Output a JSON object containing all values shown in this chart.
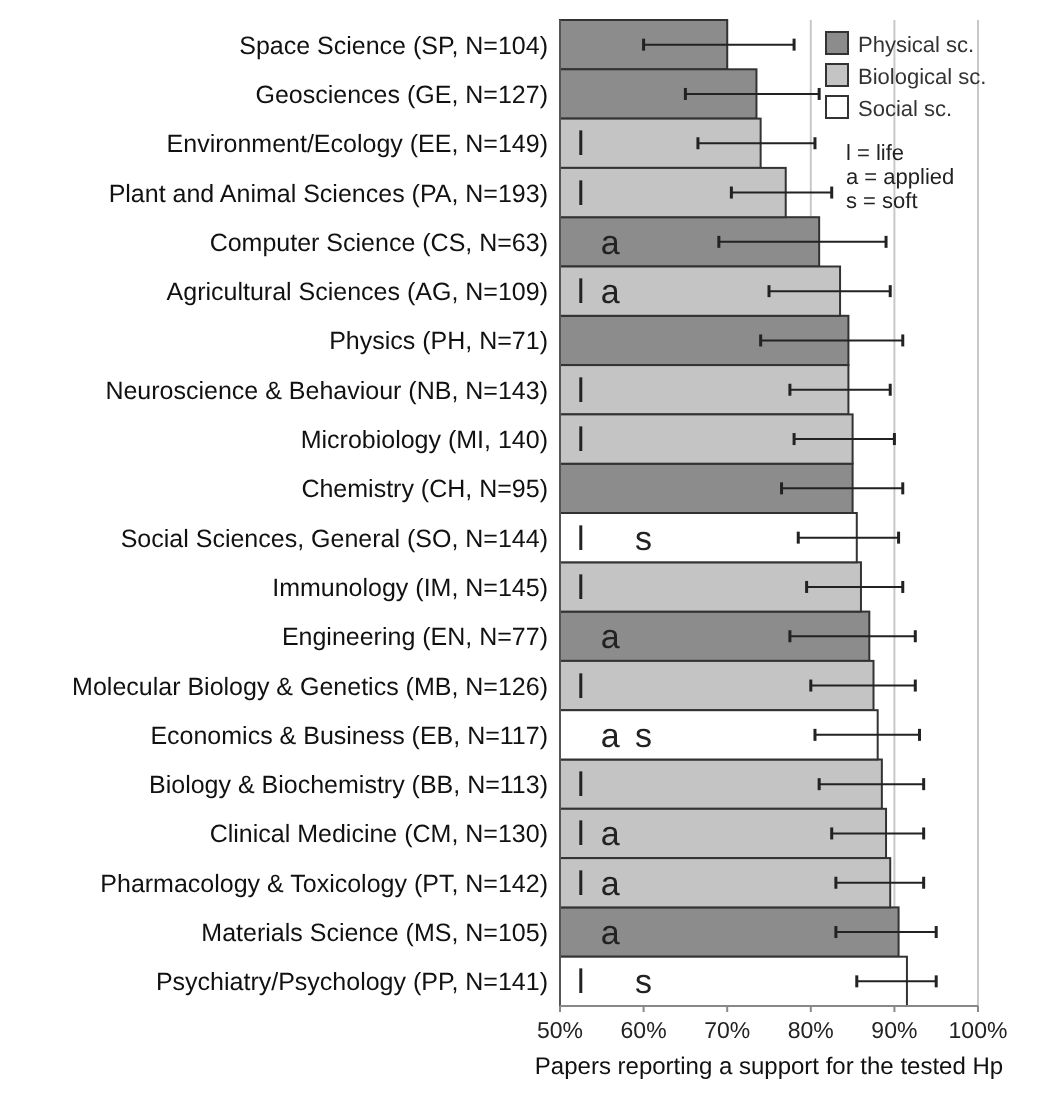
{
  "chart_data": {
    "type": "bar",
    "orientation": "horizontal",
    "xlabel": "Papers reporting a support for the tested Hp",
    "categories": [
      "Space Science (SP, N=104)",
      "Geosciences (GE, N=127)",
      "Environment/Ecology (EE, N=149)",
      "Plant and Animal Sciences (PA, N=193)",
      "Computer Science (CS, N=63)",
      "Agricultural Sciences (AG, N=109)",
      "Physics (PH, N=71)",
      "Neuroscience & Behaviour (NB, N=143)",
      "Microbiology (MI, 140)",
      "Chemistry (CH, N=95)",
      "Social Sciences, General (SO, N=144)",
      "Immunology (IM, N=145)",
      "Engineering (EN, N=77)",
      "Molecular Biology & Genetics (MB, N=126)",
      "Economics & Business (EB, N=117)",
      "Biology & Biochemistry (BB, N=113)",
      "Clinical Medicine (CM, N=130)",
      "Pharmacology & Toxicology (PT, N=142)",
      "Materials Science (MS, N=105)",
      "Psychiatry/Psychology (PP, N=141)"
    ],
    "series": [
      {
        "name": "Physical sc.",
        "color": "#8c8c8c",
        "values": [
          70,
          73.5,
          null,
          null,
          81,
          null,
          84.5,
          null,
          null,
          85,
          null,
          null,
          87,
          null,
          null,
          null,
          null,
          null,
          90.5,
          null
        ],
        "errors": [
          [
            60,
            78
          ],
          [
            65,
            81
          ],
          null,
          null,
          [
            69,
            89
          ],
          null,
          [
            74,
            91
          ],
          null,
          null,
          [
            76.5,
            91
          ],
          null,
          null,
          [
            77.5,
            92.5
          ],
          null,
          null,
          null,
          null,
          null,
          [
            83,
            95
          ],
          null
        ]
      },
      {
        "name": "Biological sc.",
        "color": "#c4c4c4",
        "values": [
          null,
          null,
          74,
          77,
          null,
          83.5,
          null,
          84.5,
          85,
          null,
          null,
          86,
          null,
          87.5,
          null,
          88.5,
          89,
          89.5,
          null,
          null
        ],
        "errors": [
          null,
          null,
          [
            66.5,
            80.5
          ],
          [
            70.5,
            82.5
          ],
          null,
          [
            75,
            89.5
          ],
          null,
          [
            77.5,
            89.5
          ],
          [
            78,
            90
          ],
          null,
          null,
          [
            79.5,
            91
          ],
          null,
          [
            80,
            92.5
          ],
          null,
          [
            81,
            93.5
          ],
          [
            82.5,
            93.5
          ],
          [
            83,
            93.5
          ],
          null,
          null
        ]
      },
      {
        "name": "Social sc.",
        "color": "#ffffff",
        "values": [
          null,
          null,
          null,
          null,
          null,
          null,
          null,
          null,
          null,
          null,
          85.5,
          null,
          null,
          null,
          88,
          null,
          null,
          null,
          null,
          91.5
        ],
        "errors": [
          null,
          null,
          null,
          null,
          null,
          null,
          null,
          null,
          null,
          null,
          [
            78.5,
            90.5
          ],
          null,
          null,
          null,
          [
            80.5,
            93
          ],
          null,
          null,
          null,
          null,
          [
            85.5,
            95
          ]
        ]
      }
    ],
    "xlim": [
      50,
      100
    ],
    "xticks": [
      {
        "value": 50,
        "label": "50%"
      },
      {
        "value": 60,
        "label": "60%"
      },
      {
        "value": 70,
        "label": "70%"
      },
      {
        "value": 80,
        "label": "80%"
      },
      {
        "value": 90,
        "label": "90%"
      },
      {
        "value": 100,
        "label": "100%"
      }
    ],
    "grid": "x",
    "legend": "top right",
    "annotations": [
      "l = life",
      "a = applied",
      "s = soft",
      {
        "text": "l",
        "x": 52.5,
        "y": "Environment/Ecology (EE, N=149)"
      },
      {
        "text": "l",
        "x": 52.5,
        "y": "Plant and Animal Sciences (PA, N=193)"
      },
      {
        "text": "a",
        "x": 56,
        "y": "Computer Science (CS, N=63)"
      },
      {
        "text": "l",
        "x": 52.5,
        "y": "Agricultural Sciences (AG, N=109)"
      },
      {
        "text": "a",
        "x": 56,
        "y": "Agricultural Sciences (AG, N=109)"
      },
      {
        "text": "l",
        "x": 52.5,
        "y": "Neuroscience & Behaviour (NB, N=143)"
      },
      {
        "text": "l",
        "x": 52.5,
        "y": "Microbiology (MI, 140)"
      },
      {
        "text": "l",
        "x": 52.5,
        "y": "Social Sciences, General (SO, N=144)"
      },
      {
        "text": "s",
        "x": 60,
        "y": "Social Sciences, General (SO, N=144)"
      },
      {
        "text": "l",
        "x": 52.5,
        "y": "Immunology (IM, N=145)"
      },
      {
        "text": "a",
        "x": 56,
        "y": "Engineering (EN, N=77)"
      },
      {
        "text": "l",
        "x": 52.5,
        "y": "Molecular Biology & Genetics (MB, N=126)"
      },
      {
        "text": "a",
        "x": 56,
        "y": "Economics & Business (EB, N=117)"
      },
      {
        "text": "s",
        "x": 60,
        "y": "Economics & Business (EB, N=117)"
      },
      {
        "text": "l",
        "x": 52.5,
        "y": "Biology & Biochemistry (BB, N=113)"
      },
      {
        "text": "l",
        "x": 52.5,
        "y": "Clinical Medicine (CM, N=130)"
      },
      {
        "text": "a",
        "x": 56,
        "y": "Clinical Medicine (CM, N=130)"
      },
      {
        "text": "l",
        "x": 52.5,
        "y": "Pharmacology & Toxicology (PT, N=142)"
      },
      {
        "text": "a",
        "x": 56,
        "y": "Pharmacology & Toxicology (PT, N=142)"
      },
      {
        "text": "a",
        "x": 56,
        "y": "Materials Science (MS, N=105)"
      },
      {
        "text": "l",
        "x": 52.5,
        "y": "Psychiatry/Psychology (PP, N=141)"
      },
      {
        "text": "s",
        "x": 60,
        "y": "Psychiatry/Psychology (PP, N=141)"
      }
    ]
  }
}
